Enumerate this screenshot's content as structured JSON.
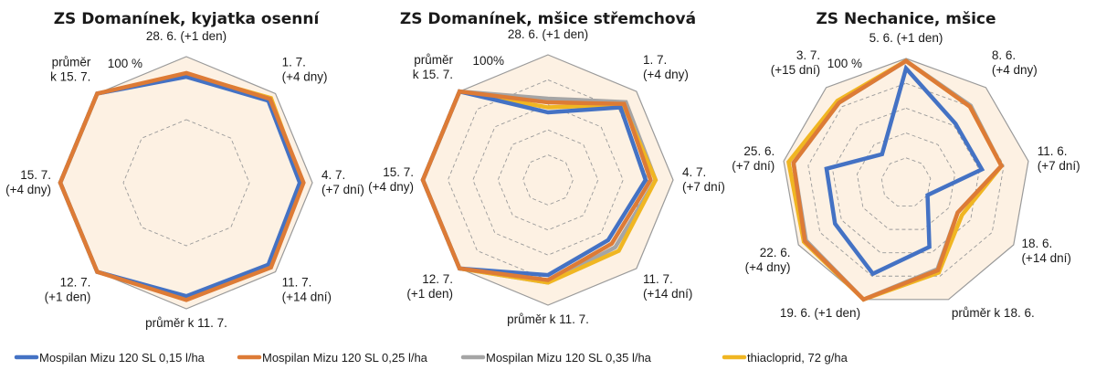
{
  "colors": {
    "background_fill": "#fdf1e3",
    "outer_ring": "#9a9a9a",
    "grid": "#9a9a9a"
  },
  "legend": [
    {
      "name": "Mospilan Mizu 120 SL 0,15 l/ha",
      "color": "#4472c4"
    },
    {
      "name": "Mospilan Mizu 120 SL 0,25 l/ha",
      "color": "#dd7b36"
    },
    {
      "name": "Mospilan Mizu 120 SL 0,35 l/ha",
      "color": "#a5a5a5"
    },
    {
      "name": "thiacloprid, 72 g/ha",
      "color": "#f0b622"
    }
  ],
  "chart_data": [
    {
      "type": "radar",
      "title": "ZS Domanínek, kyjatka osenní",
      "max_label": "100 %",
      "range": [
        0,
        100
      ],
      "grid": [
        50
      ],
      "axes": [
        [
          "28. 6. (+1 den)"
        ],
        [
          "1. 7.",
          "(+4 dny)"
        ],
        [
          "4. 7.",
          "(+7 dní)"
        ],
        [
          "11. 7.",
          "(+14 dní)"
        ],
        [
          "průměr k 11. 7."
        ],
        [
          "12. 7.",
          "(+1 den)"
        ],
        [
          "15. 7.",
          "(+4 dny)"
        ],
        [
          "průměr",
          "k 15. 7."
        ]
      ],
      "series": [
        {
          "name": "Mospilan Mizu 120 SL 0,35 l/ha",
          "values": [
            85,
            93,
            91,
            93,
            91,
            100,
            100,
            100
          ]
        },
        {
          "name": "thiacloprid, 72 g/ha",
          "values": [
            86,
            95,
            92,
            94,
            92,
            100,
            100,
            100
          ]
        },
        {
          "name": "Mospilan Mizu 120 SL 0,15 l/ha",
          "values": [
            84,
            92,
            90,
            92,
            90,
            100,
            100,
            100
          ]
        },
        {
          "name": "Mospilan Mizu 120 SL 0,25 l/ha",
          "values": [
            87,
            94,
            93,
            95,
            93,
            100,
            100,
            100
          ]
        }
      ]
    },
    {
      "type": "radar",
      "title": "ZS Domanínek, mšice střemchová",
      "max_label": "100%",
      "range": [
        0,
        100
      ],
      "grid": [
        20,
        40,
        60,
        80
      ],
      "axes": [
        [
          "28. 6. (+1 den)"
        ],
        [
          "1. 7.",
          "(+4 dny)"
        ],
        [
          "4. 7.",
          "(+7 dní)"
        ],
        [
          "11. 7.",
          "(+14 dní)"
        ],
        [
          "průměr k 11. 7."
        ],
        [
          "12. 7.",
          "(+1 den)"
        ],
        [
          "15. 7.",
          "(+4 dny)"
        ],
        [
          "průměr",
          "k 15. 7."
        ]
      ],
      "series": [
        {
          "name": "Mospilan Mizu 120 SL 0,35 l/ha",
          "values": [
            65,
            88,
            86,
            76,
            82,
            100,
            100,
            100
          ]
        },
        {
          "name": "thiacloprid, 72 g/ha",
          "values": [
            58,
            85,
            86,
            80,
            82,
            100,
            100,
            100
          ]
        },
        {
          "name": "Mospilan Mizu 120 SL 0,15 l/ha",
          "values": [
            54,
            82,
            78,
            68,
            76,
            100,
            100,
            100
          ]
        },
        {
          "name": "Mospilan Mizu 120 SL 0,25 l/ha",
          "values": [
            62,
            86,
            82,
            72,
            80,
            100,
            100,
            100
          ]
        }
      ]
    },
    {
      "type": "radar",
      "title": "ZS Nechanice, mšice",
      "max_label": "100 %",
      "range": [
        0,
        100
      ],
      "grid": [
        20,
        40,
        60,
        80
      ],
      "axes": [
        [
          "5. 6. (+1 den)"
        ],
        [
          "8. 6.",
          "(+4 dny)"
        ],
        [
          "11. 6.",
          "(+7 dní)"
        ],
        [
          "18. 6.",
          "(+14 dní)"
        ],
        [
          "průměr k 18. 6."
        ],
        [
          "19. 6. (+1 den)"
        ],
        [
          "22. 6.",
          "(+4 dny)"
        ],
        [
          "25. 6.",
          "(+7 dní)"
        ],
        [
          "3. 7.",
          "(+15 dní)"
        ]
      ],
      "series": [
        {
          "name": "Mospilan Mizu 120 SL 0,35 l/ha",
          "values": [
            98,
            81,
            78,
            48,
            74,
            100,
            93,
            92,
            84
          ]
        },
        {
          "name": "thiacloprid, 72 g/ha",
          "values": [
            98,
            80,
            78,
            52,
            77,
            100,
            95,
            96,
            86
          ]
        },
        {
          "name": "Mospilan Mizu 120 SL 0,15 l/ha",
          "values": [
            92,
            62,
            62,
            20,
            55,
            78,
            66,
            65,
            30
          ]
        },
        {
          "name": "Mospilan Mizu 120 SL 0,25 l/ha",
          "values": [
            98,
            80,
            78,
            48,
            75,
            100,
            94,
            92,
            84
          ]
        }
      ]
    }
  ]
}
